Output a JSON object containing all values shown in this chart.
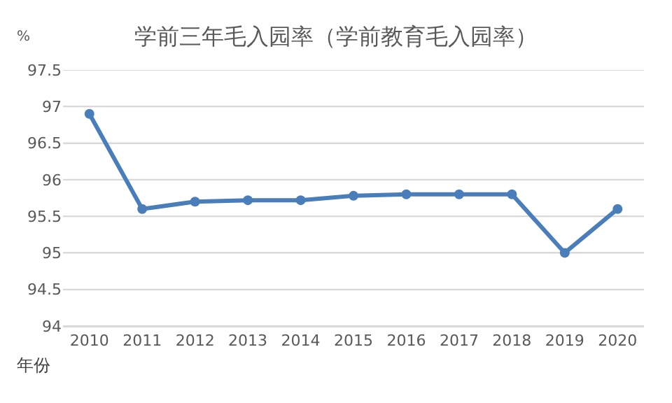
{
  "chart_data": {
    "type": "line",
    "title": "学前三年毛入园率（学前教育毛入园率）",
    "xlabel": "年份",
    "ylabel": "%",
    "categories": [
      "2010",
      "2011",
      "2012",
      "2013",
      "2014",
      "2015",
      "2016",
      "2017",
      "2018",
      "2019",
      "2020"
    ],
    "series": [
      {
        "color": "#4a7ebb",
        "values": [
          96.9,
          95.6,
          95.7,
          95.72,
          95.72,
          95.78,
          95.8,
          95.8,
          95.8,
          95.0,
          95.6
        ]
      }
    ],
    "ylim": [
      94,
      97.5
    ],
    "yticks": [
      94,
      94.5,
      95,
      95.5,
      96,
      96.5,
      97,
      97.5
    ],
    "grid": "y",
    "marker": "circle",
    "line_style": "solid"
  }
}
